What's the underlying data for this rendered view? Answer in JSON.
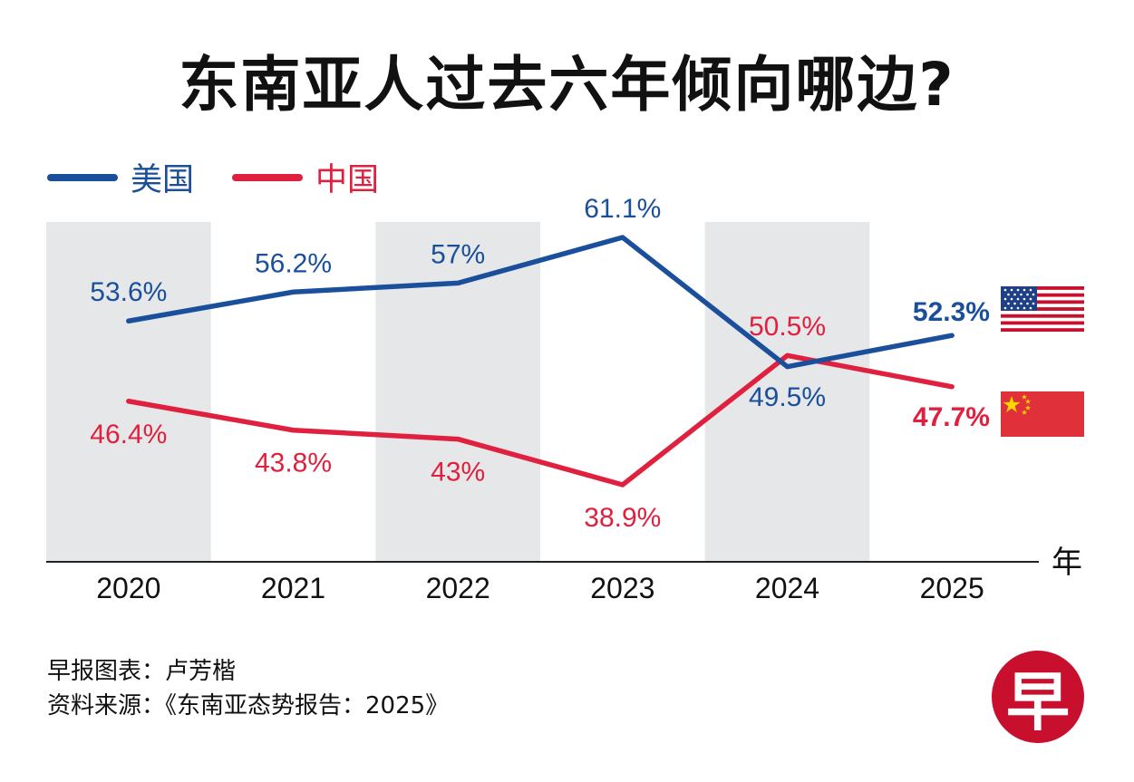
{
  "title": "东南亚人过去六年倾向哪边?",
  "legend": [
    {
      "label": "美国",
      "color": "#1a4f9c"
    },
    {
      "label": "中国",
      "color": "#e0203f"
    }
  ],
  "x_unit_label": "年",
  "source": {
    "line1": "早报图表：卢芳楷",
    "line2": "资料来源：《东南亚态势报告：2025》"
  },
  "logo": {
    "text": "早",
    "color": "#c8102e"
  },
  "flags": [
    {
      "name": "us-flag-icon"
    },
    {
      "name": "china-flag-icon"
    }
  ],
  "chart_data": {
    "type": "line",
    "categories": [
      "2020",
      "2021",
      "2022",
      "2023",
      "2024",
      "2025"
    ],
    "series": [
      {
        "name": "美国",
        "color": "#1a4f9c",
        "values": [
          53.6,
          56.2,
          57,
          61.1,
          49.5,
          52.3
        ],
        "labels": [
          "53.6%",
          "56.2%",
          "57%",
          "61.1%",
          "49.5%",
          "52.3%"
        ]
      },
      {
        "name": "中国",
        "color": "#e0203f",
        "values": [
          46.4,
          43.8,
          43,
          38.9,
          50.5,
          47.7
        ],
        "labels": [
          "46.4%",
          "43.8%",
          "43%",
          "38.9%",
          "50.5%",
          "47.7%"
        ]
      }
    ],
    "xlabel": "年",
    "ylabel": "",
    "grid": false,
    "legend_position": "top-left"
  }
}
